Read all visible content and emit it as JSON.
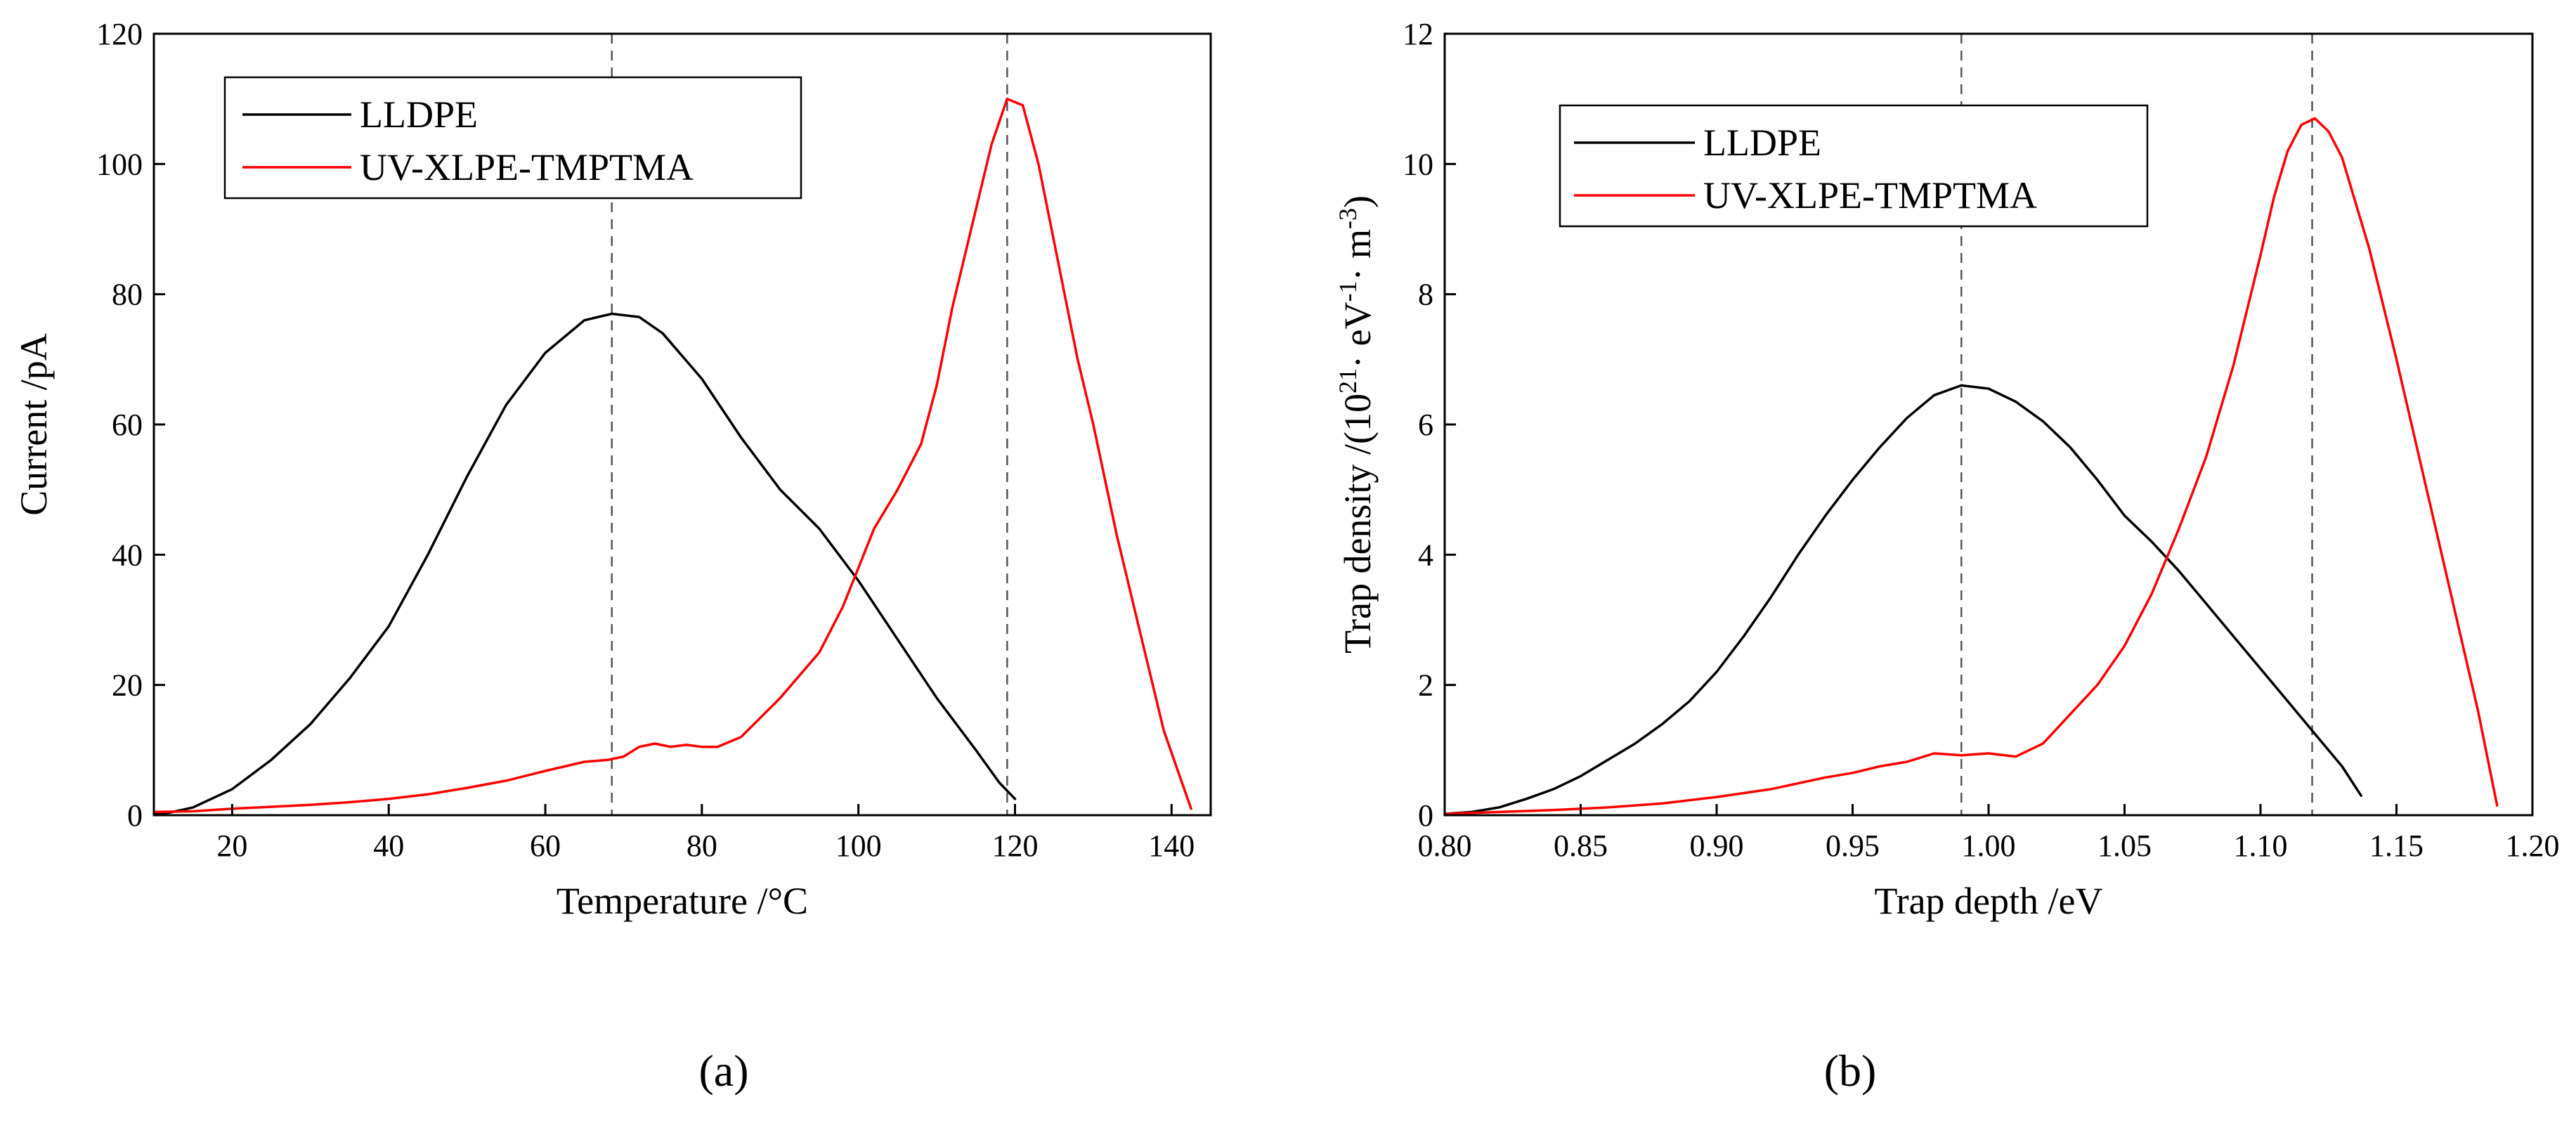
{
  "chart_data": [
    {
      "type": "line",
      "caption": "(a)",
      "xlabel": "Temperature /°C",
      "ylabel": "Current /pA",
      "xlim": [
        10,
        145
      ],
      "ylim": [
        0,
        120
      ],
      "xticks": [
        20,
        40,
        60,
        80,
        100,
        120,
        140
      ],
      "yticks": [
        0,
        20,
        40,
        60,
        80,
        100,
        120
      ],
      "grid": false,
      "legend_position": "top-left",
      "vlines": [
        68.5,
        119
      ],
      "series": [
        {
          "name": "LLDPE",
          "color": "#000000",
          "x": [
            10,
            12,
            15,
            20,
            25,
            30,
            35,
            40,
            45,
            50,
            55,
            60,
            65,
            68.5,
            72,
            75,
            80,
            85,
            90,
            95,
            100,
            105,
            110,
            115,
            118,
            120
          ],
          "y": [
            0.2,
            0.4,
            1.2,
            4,
            8.5,
            14,
            21,
            29,
            40,
            52,
            63,
            71,
            76,
            77,
            76.5,
            74,
            67,
            58,
            50,
            44,
            36,
            27,
            18,
            10,
            5,
            2.5
          ]
        },
        {
          "name": "UV-XLPE-TMPTMA",
          "color": "#ff0000",
          "x": [
            10,
            15,
            20,
            25,
            30,
            35,
            40,
            45,
            50,
            55,
            60,
            65,
            68,
            70,
            72,
            74,
            76,
            78,
            80,
            82,
            85,
            90,
            95,
            98,
            100,
            102,
            105,
            108,
            110,
            112,
            115,
            117,
            119,
            121,
            123,
            125,
            128,
            130,
            133,
            136,
            139,
            142.5
          ],
          "y": [
            0.5,
            0.6,
            1,
            1.3,
            1.6,
            2,
            2.5,
            3.2,
            4.2,
            5.3,
            6.8,
            8.2,
            8.5,
            9,
            10.5,
            11,
            10.5,
            10.8,
            10.5,
            10.5,
            12,
            18,
            25,
            32,
            38,
            44,
            50,
            57,
            66,
            78,
            93,
            103,
            110,
            109,
            100,
            88,
            70,
            60,
            43,
            28,
            13,
            1
          ]
        }
      ]
    },
    {
      "type": "line",
      "caption": "(b)",
      "xlabel": "Trap depth /eV",
      "ylabel_parts": [
        "Trap density /(10",
        "21",
        "· eV",
        "-1",
        "· m",
        "-3",
        ")"
      ],
      "xlim": [
        0.8,
        1.2
      ],
      "ylim": [
        0,
        12
      ],
      "xticks": [
        0.8,
        0.85,
        0.9,
        0.95,
        1.0,
        1.05,
        1.1,
        1.15,
        1.2
      ],
      "xtick_labels": [
        "0.80",
        "0.85",
        "0.90",
        "0.95",
        "1.00",
        "1.05",
        "1.10",
        "1.15",
        "1.20"
      ],
      "yticks": [
        0,
        2,
        4,
        6,
        8,
        10,
        12
      ],
      "grid": false,
      "legend_position": "top-left",
      "vlines": [
        0.99,
        1.119
      ],
      "series": [
        {
          "name": "LLDPE",
          "color": "#000000",
          "x": [
            0.8,
            0.81,
            0.82,
            0.83,
            0.84,
            0.85,
            0.86,
            0.87,
            0.88,
            0.89,
            0.9,
            0.91,
            0.92,
            0.93,
            0.94,
            0.95,
            0.96,
            0.97,
            0.98,
            0.99,
            1.0,
            1.01,
            1.02,
            1.03,
            1.04,
            1.05,
            1.06,
            1.07,
            1.08,
            1.09,
            1.1,
            1.11,
            1.12,
            1.13,
            1.137
          ],
          "y": [
            0.02,
            0.05,
            0.12,
            0.25,
            0.4,
            0.6,
            0.85,
            1.1,
            1.4,
            1.75,
            2.2,
            2.75,
            3.35,
            4.0,
            4.6,
            5.15,
            5.65,
            6.1,
            6.45,
            6.6,
            6.55,
            6.35,
            6.05,
            5.65,
            5.15,
            4.6,
            4.2,
            3.75,
            3.25,
            2.75,
            2.25,
            1.75,
            1.25,
            0.75,
            0.3
          ]
        },
        {
          "name": "UV-XLPE-TMPTMA",
          "color": "#ff0000",
          "x": [
            0.8,
            0.82,
            0.84,
            0.86,
            0.88,
            0.9,
            0.92,
            0.94,
            0.95,
            0.96,
            0.97,
            0.98,
            0.99,
            1.0,
            1.01,
            1.02,
            1.03,
            1.04,
            1.05,
            1.06,
            1.07,
            1.08,
            1.09,
            1.1,
            1.105,
            1.11,
            1.115,
            1.12,
            1.125,
            1.13,
            1.14,
            1.15,
            1.16,
            1.17,
            1.18,
            1.187
          ],
          "y": [
            0.02,
            0.05,
            0.08,
            0.12,
            0.18,
            0.28,
            0.4,
            0.58,
            0.65,
            0.75,
            0.82,
            0.95,
            0.92,
            0.95,
            0.9,
            1.1,
            1.55,
            2.0,
            2.6,
            3.4,
            4.4,
            5.5,
            6.9,
            8.6,
            9.5,
            10.2,
            10.6,
            10.7,
            10.5,
            10.1,
            8.7,
            7.0,
            5.2,
            3.4,
            1.6,
            0.15
          ]
        }
      ]
    }
  ]
}
